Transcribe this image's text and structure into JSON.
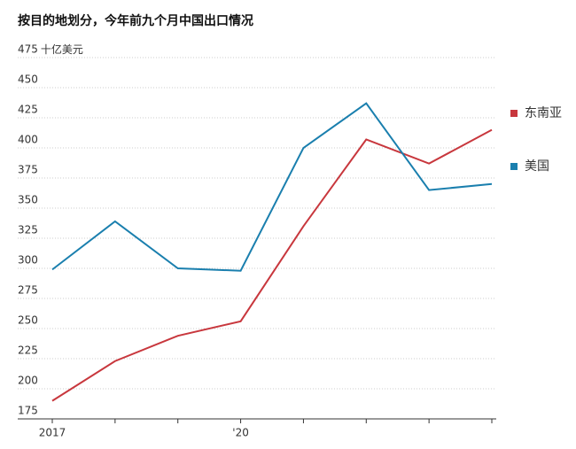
{
  "chart_data": {
    "type": "line",
    "title": "按目的地划分，今年前九个月中国出口情况",
    "y_label": "十亿美元",
    "categories": [
      "2017",
      null,
      null,
      "'20",
      null,
      null,
      null,
      null
    ],
    "series": [
      {
        "name": "东南亚",
        "color": "#c8373d",
        "values": [
          190,
          223,
          244,
          256,
          335,
          407,
          387,
          415
        ]
      },
      {
        "name": "美国",
        "color": "#1a7fae",
        "values": [
          299,
          339,
          300,
          298,
          400,
          437,
          365,
          370
        ]
      }
    ],
    "ylim": [
      175,
      475
    ],
    "yticks": [
      175,
      200,
      225,
      250,
      275,
      300,
      325,
      350,
      375,
      400,
      425,
      450,
      475
    ],
    "grid": true,
    "legend": "right"
  }
}
